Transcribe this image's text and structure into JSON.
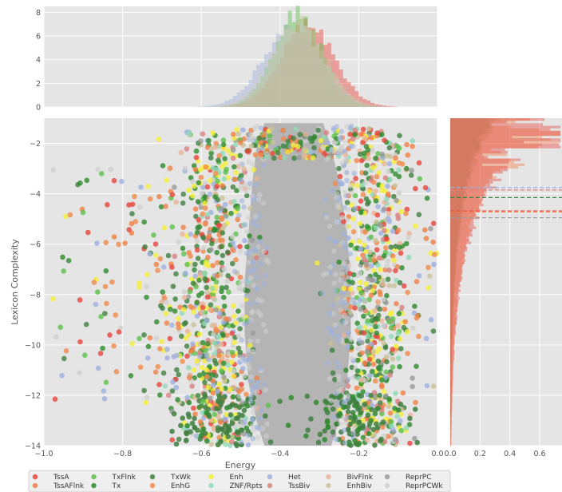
{
  "chart_data": {
    "type": "scatter",
    "xlabel": "Energy",
    "ylabel": "Lexicon Complexity",
    "xlim": [
      -1.0,
      0.0
    ],
    "ylim": [
      -14,
      -1
    ],
    "x_ticks": [
      -1.0,
      -0.8,
      -0.6,
      -0.4,
      -0.2,
      0.0
    ],
    "x_tick_labels": [
      "−1.0",
      "−0.8",
      "−0.6",
      "−0.4",
      "−0.2",
      "0.0"
    ],
    "y_ticks": [
      -2,
      -4,
      -6,
      -8,
      -10,
      -12,
      -14
    ],
    "y_tick_labels": [
      "−2",
      "−4",
      "−6",
      "−8",
      "−10",
      "−12",
      "−14"
    ],
    "top_marginal": {
      "type": "histogram",
      "ylim": [
        0,
        8.5
      ],
      "y_ticks": [
        0,
        2,
        4,
        6,
        8
      ],
      "peak_x": -0.36,
      "peak_value": 8.0
    },
    "right_marginal": {
      "type": "histogram",
      "xlim": [
        0.0,
        0.75
      ],
      "x_ticks": [
        0.0,
        0.2,
        0.4,
        0.6
      ],
      "x_tick_labels": [
        "0.0",
        "0.2",
        "0.4",
        "0.6"
      ],
      "mean_lines": [
        {
          "series": "TssA",
          "y": -4.68
        },
        {
          "series": "TssAFlnk",
          "y": -4.72
        },
        {
          "series": "TxWk",
          "y": -4.15
        },
        {
          "series": "Het",
          "y": -3.75
        },
        {
          "series": "TssBiv",
          "y": -3.85
        },
        {
          "series": "ReprPC",
          "y": -4.95
        }
      ]
    },
    "grid": true,
    "legend_position": "bottom",
    "series": [
      {
        "name": "TssA",
        "color": "#e8453c"
      },
      {
        "name": "TssAFlnk",
        "color": "#f07f45"
      },
      {
        "name": "TxFlnk",
        "color": "#5cc04a"
      },
      {
        "name": "Tx",
        "color": "#2e8b2e"
      },
      {
        "name": "TxWk",
        "color": "#3f7f3f"
      },
      {
        "name": "EnhG",
        "color": "#f08a4b"
      },
      {
        "name": "Enh",
        "color": "#f5ef3a"
      },
      {
        "name": "ZNF/Rpts",
        "color": "#8fd9b6"
      },
      {
        "name": "Het",
        "color": "#9fb0de"
      },
      {
        "name": "TssBiv",
        "color": "#d98080"
      },
      {
        "name": "BivFlnk",
        "color": "#e8b49a"
      },
      {
        "name": "EnhBiv",
        "color": "#c9c29a"
      },
      {
        "name": "ReprPC",
        "color": "#9a9a9a"
      },
      {
        "name": "ReprPCWk",
        "color": "#cfcfcf"
      }
    ]
  }
}
